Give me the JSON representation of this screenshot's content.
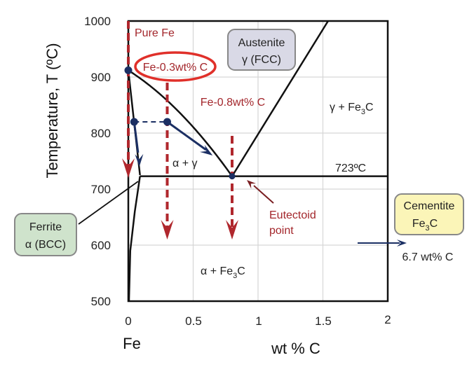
{
  "axes": {
    "ylabel": "Temperature, T  (ºC)",
    "xlabel": "wt % C",
    "x_origin_label": "Fe",
    "x_ticks": [
      "0",
      "0.5",
      "1",
      "1.5",
      "2"
    ],
    "y_ticks": [
      "1000",
      "900",
      "800",
      "700",
      "600",
      "500"
    ],
    "xlim": [
      0,
      2
    ],
    "ylim": [
      500,
      1000
    ]
  },
  "phases": {
    "austenite_line1": "Austenite",
    "austenite_line2": "γ  (FCC)",
    "gamma_fe3c": "γ + Fe",
    "gamma_fe3c_sub": "3",
    "gamma_fe3c_end": "C",
    "alpha_gamma": "α + γ",
    "alpha_fe3c": "α + Fe",
    "alpha_fe3c_sub": "3",
    "alpha_fe3c_end": "C",
    "ferrite_line1": "Ferrite",
    "ferrite_line2": "α (BCC)",
    "cementite_line1": "Cementite",
    "cementite_line2": "Fe",
    "cementite_sub": "3",
    "cementite_end": "C",
    "cementite_composition": "6.7 wt% C"
  },
  "annotations": {
    "pure_fe": "Pure Fe",
    "fe03": "Fe-0.3wt% C",
    "fe08": "Fe-0.8wt% C",
    "eutectoid_temp": "723ºC",
    "eutectoid_line1": "Eutectoid",
    "eutectoid_line2": "point"
  },
  "colors": {
    "dashed_red": "#b0272d",
    "highlight_ellipse": "#e0302a",
    "blue_path": "#1b2f63",
    "austenite_box": "#d9d9e6",
    "ferrite_box": "#cfe3cc",
    "cementite_box": "#fbf5b8"
  }
}
